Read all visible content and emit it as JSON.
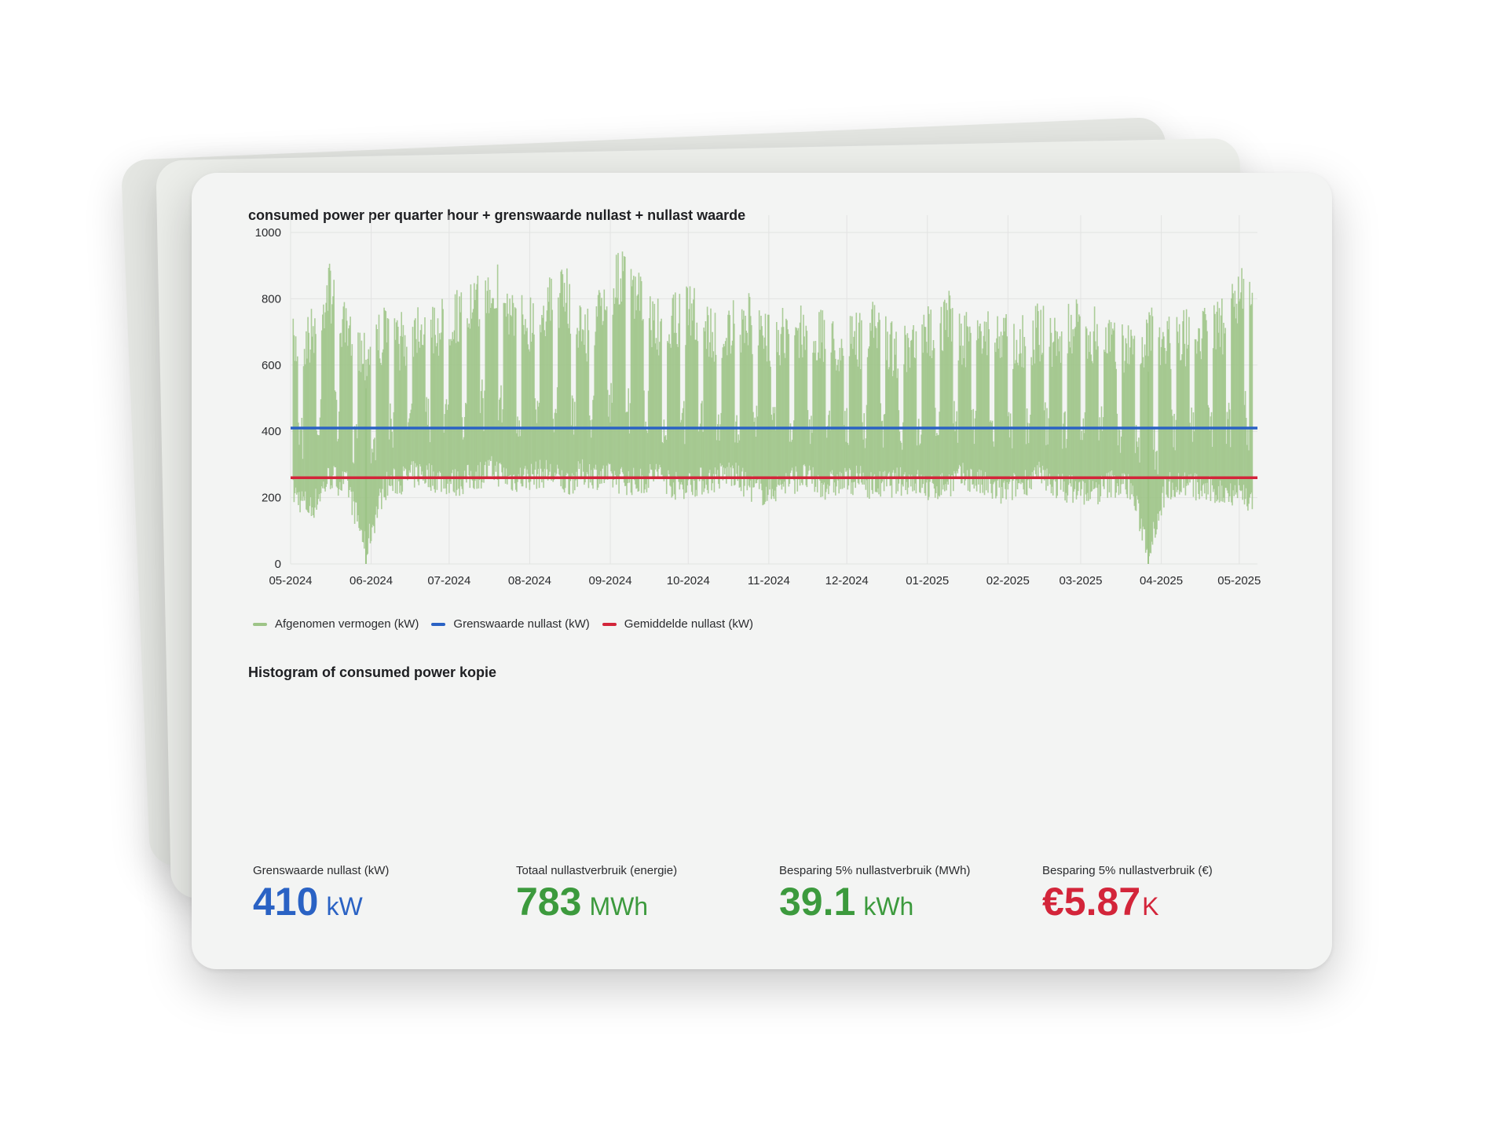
{
  "colors": {
    "consumed": "#9dc487",
    "threshold": "#2a62c4",
    "average": "#d3253a",
    "stat_blue": "#2a62c4",
    "stat_green": "#3c9a3d",
    "stat_red": "#d3253a"
  },
  "chart_data": {
    "type": "line",
    "title": "consumed power per quarter hour + grenswaarde nullast + nullast waarde",
    "xlabel": "",
    "ylabel": "",
    "ylim": [
      0,
      1000
    ],
    "y_ticks": [
      "0",
      "200",
      "400",
      "600",
      "800",
      "1000"
    ],
    "x_ticks": [
      "05-2024",
      "06-2024",
      "07-2024",
      "08-2024",
      "09-2024",
      "10-2024",
      "11-2024",
      "12-2024",
      "01-2025",
      "02-2025",
      "03-2025",
      "04-2025",
      "05-2025"
    ],
    "x_range": [
      "2024-05-01",
      "2025-05-08"
    ],
    "grid": true,
    "legend_position": "bottom-left",
    "series": [
      {
        "name": "Afgenomen vermogen (kW)",
        "points": "daily min/max envelope of quarter-hour values",
        "x": [
          "2024-05-02",
          "2024-05-09",
          "2024-05-16",
          "2024-05-23",
          "2024-05-30",
          "2024-06-06",
          "2024-06-13",
          "2024-06-20",
          "2024-06-27",
          "2024-07-04",
          "2024-07-11",
          "2024-07-18",
          "2024-07-25",
          "2024-08-01",
          "2024-08-08",
          "2024-08-15",
          "2024-08-22",
          "2024-08-29",
          "2024-09-05",
          "2024-09-12",
          "2024-09-19",
          "2024-09-26",
          "2024-10-03",
          "2024-10-10",
          "2024-10-17",
          "2024-10-24",
          "2024-10-31",
          "2024-11-07",
          "2024-11-14",
          "2024-11-21",
          "2024-11-28",
          "2024-12-05",
          "2024-12-12",
          "2024-12-19",
          "2024-12-26",
          "2025-01-02",
          "2025-01-09",
          "2025-01-16",
          "2025-01-23",
          "2025-01-30",
          "2025-02-06",
          "2025-02-13",
          "2025-02-20",
          "2025-02-27",
          "2025-03-06",
          "2025-03-13",
          "2025-03-20",
          "2025-03-27",
          "2025-04-03",
          "2025-04-10",
          "2025-04-17",
          "2025-04-24",
          "2025-05-01",
          "2025-05-06"
        ],
        "max": [
          740,
          780,
          920,
          760,
          730,
          780,
          760,
          820,
          800,
          840,
          860,
          930,
          850,
          820,
          870,
          900,
          780,
          850,
          960,
          880,
          800,
          820,
          850,
          780,
          790,
          820,
          760,
          780,
          800,
          770,
          740,
          760,
          800,
          740,
          720,
          790,
          830,
          760,
          800,
          770,
          760,
          790,
          760,
          800,
          780,
          760,
          740,
          780,
          760,
          770,
          790,
          800,
          900,
          880
        ],
        "min": [
          170,
          120,
          220,
          190,
          0,
          190,
          210,
          230,
          210,
          200,
          220,
          240,
          210,
          220,
          230,
          200,
          230,
          220,
          210,
          200,
          230,
          190,
          200,
          210,
          230,
          190,
          170,
          200,
          220,
          190,
          200,
          210,
          190,
          200,
          210,
          180,
          200,
          220,
          190,
          170,
          200,
          220,
          190,
          180,
          170,
          200,
          190,
          0,
          190,
          200,
          180,
          170,
          180,
          140
        ]
      },
      {
        "name": "Grenswaarde nullast (kW)",
        "x": [
          "2024-05-01",
          "2025-05-08"
        ],
        "values": [
          410,
          410
        ]
      },
      {
        "name": "Gemiddelde nullast (kW)",
        "x": [
          "2024-05-01",
          "2025-05-08"
        ],
        "values": [
          260,
          260
        ]
      }
    ]
  },
  "histogram": {
    "title": "Histogram of consumed power kopie"
  },
  "stats": [
    {
      "label": "Grenswaarde nullast (kW)",
      "value": "410",
      "unit": "kW",
      "color": "#2a62c4"
    },
    {
      "label": "Totaal nullastverbruik (energie)",
      "value": "783",
      "unit": "MWh",
      "color": "#3c9a3d"
    },
    {
      "label": "Besparing 5% nullastverbruik (MWh)",
      "value": "39.1",
      "unit": "kWh",
      "color": "#3c9a3d"
    },
    {
      "label": "Besparing 5% nullastverbruik (€)",
      "value": "€5.87",
      "unit": "K",
      "color": "#d3253a"
    }
  ]
}
